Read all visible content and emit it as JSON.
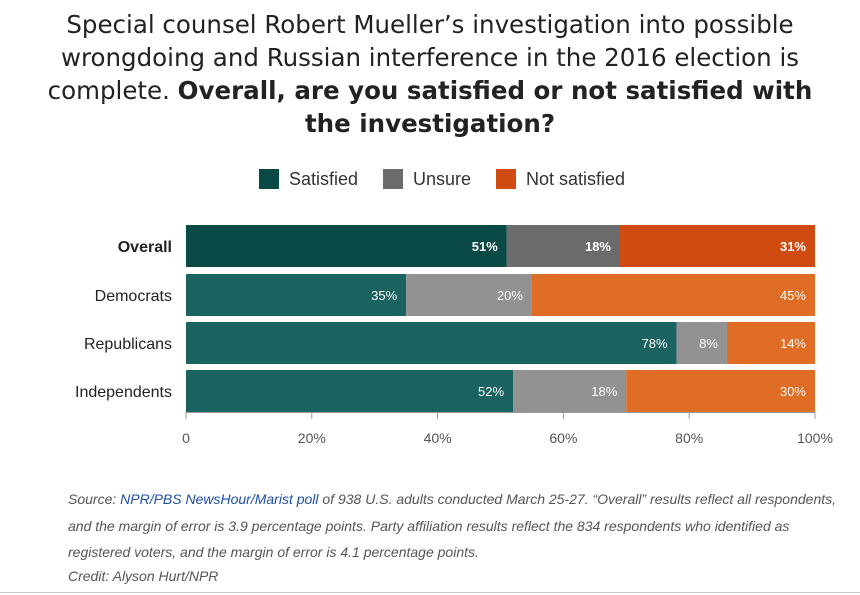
{
  "header": {
    "title_plain": "Special counsel Robert Mueller’s investigation into possible wrongdoing and Russian interference in the 2016 election is complete. ",
    "title_bold": "Overall, are you satisfied or not satisfied with the investigation?"
  },
  "chart_data": {
    "type": "bar",
    "orientation": "horizontal",
    "stacked": true,
    "normalized": true,
    "categories": [
      "Overall",
      "Democrats",
      "Republicans",
      "Independents"
    ],
    "series": [
      {
        "name": "Satisfied",
        "values": [
          51,
          35,
          78,
          52
        ]
      },
      {
        "name": "Unsure",
        "values": [
          18,
          20,
          8,
          18
        ]
      },
      {
        "name": "Not satisfied",
        "values": [
          31,
          45,
          14,
          30
        ]
      }
    ],
    "xlim": [
      0,
      100
    ],
    "xticks": [
      "0",
      "20%",
      "40%",
      "60%",
      "80%",
      "100%"
    ],
    "legend_position": "top"
  },
  "colors": {
    "overall": [
      "#0a4a46",
      "#6b6b6b",
      "#cf4b12"
    ],
    "groups": [
      "#1a6360",
      "#929292",
      "#e06d25"
    ],
    "legend": [
      "#0a4a46",
      "#6b6b6b",
      "#cf4b12"
    ]
  },
  "footer": {
    "source_prefix": "Source: ",
    "source_link": "NPR/PBS NewsHour/Marist poll",
    "source_text": " of 938 U.S. adults conducted March 25-27. “Overall” results reflect all respondents, and the margin of error is 3.9 percentage points. Party affiliation results reflect the 834 respondents who identified as registered voters, and the margin of error is 4.1 percentage points.",
    "credit": "Credit: Alyson Hurt/NPR"
  }
}
